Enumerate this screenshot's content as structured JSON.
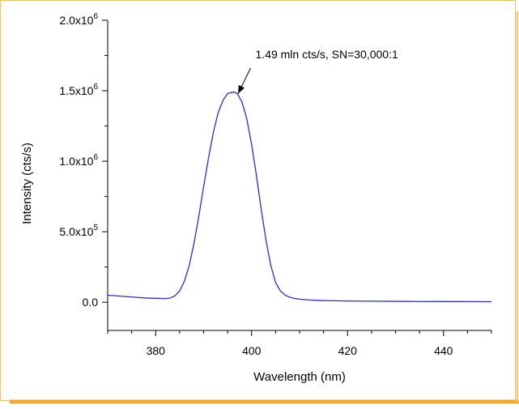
{
  "chart_data": {
    "type": "line",
    "title": "",
    "xlabel": "Wavelength (nm)",
    "ylabel": "Intensity (cts/s)",
    "xlim": [
      370,
      450
    ],
    "ylim": [
      -200000,
      2000000
    ],
    "x_ticks": [
      380,
      400,
      420,
      440
    ],
    "x_tick_labels": [
      "380",
      "400",
      "420",
      "440"
    ],
    "y_ticks": [
      0,
      500000,
      1000000,
      1500000,
      2000000
    ],
    "y_tick_labels": [
      {
        "mantissa": "0.0",
        "exp": ""
      },
      {
        "mantissa": "5.0x10",
        "exp": "5"
      },
      {
        "mantissa": "1.0x10",
        "exp": "6"
      },
      {
        "mantissa": "1.5x10",
        "exp": "6"
      },
      {
        "mantissa": "2.0x10",
        "exp": "6"
      }
    ],
    "grid": false,
    "legend": "none",
    "series": [
      {
        "color": "#2b2bd6",
        "x": [
          370,
          372,
          374,
          376,
          378,
          380,
          382,
          383,
          384,
          385,
          386,
          387,
          388,
          389,
          390,
          391,
          392,
          393,
          394,
          395,
          396,
          396.5,
          397,
          398,
          399,
          400,
          401,
          402,
          403,
          404,
          405,
          406,
          407,
          408,
          409,
          410,
          412,
          414,
          416,
          420,
          425,
          430,
          435,
          440,
          445,
          450
        ],
        "y": [
          50000,
          45000,
          40000,
          35000,
          30000,
          28000,
          26000,
          30000,
          45000,
          80000,
          150000,
          260000,
          420000,
          610000,
          820000,
          1020000,
          1200000,
          1340000,
          1430000,
          1480000,
          1490000,
          1490000,
          1480000,
          1420000,
          1300000,
          1120000,
          900000,
          660000,
          440000,
          260000,
          140000,
          80000,
          50000,
          35000,
          27000,
          22000,
          16000,
          13000,
          11000,
          9000,
          7500,
          6500,
          5500,
          5000,
          4500,
          4000
        ]
      }
    ],
    "annotation": {
      "text": "1.49 mln cts/s, SN=30,000:1",
      "point": {
        "x": 396.5,
        "y": 1490000
      },
      "text_anchor": {
        "x": 400.8,
        "y": 1730000
      }
    }
  },
  "style": {
    "frame_border": "#f0c36a",
    "frame_shadow": "#f0a830",
    "line_color": "#2b2bd6",
    "axis_color": "#000000",
    "text_color": "#000000"
  }
}
